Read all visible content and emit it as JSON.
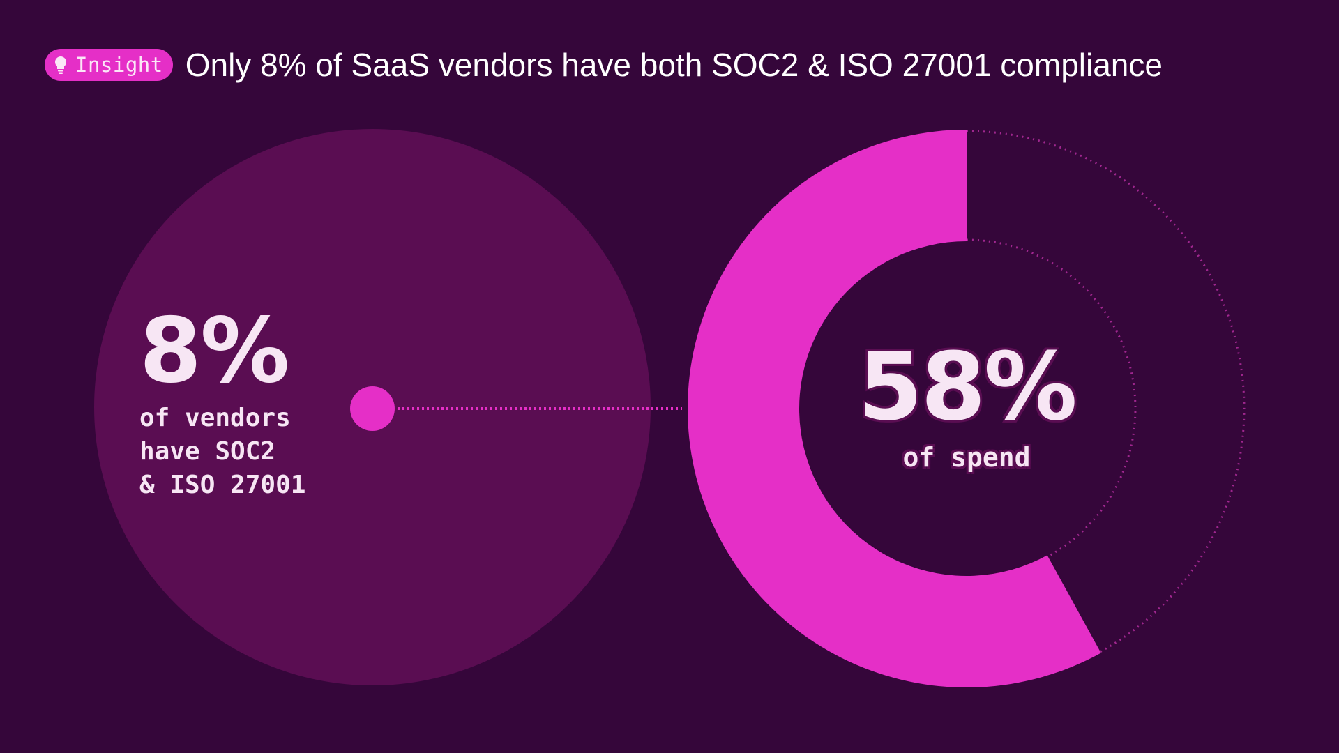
{
  "header": {
    "badge_label": "Insight",
    "badge_icon": "lightbulb-icon",
    "title": "Only 8% of SaaS vendors have both SOC2 & ISO 27001 compliance"
  },
  "colors": {
    "background": "#35063a",
    "circle_fill": "#5a0d52",
    "accent": "#e52fc7",
    "text": "#f7e6f4"
  },
  "chart_data": [
    {
      "type": "pie",
      "label": "8%",
      "description": "of vendors\nhave SOC2\n& ISO 27001",
      "value": 8
    },
    {
      "type": "pie",
      "label": "58%",
      "description": "of spend",
      "value": 58
    }
  ]
}
